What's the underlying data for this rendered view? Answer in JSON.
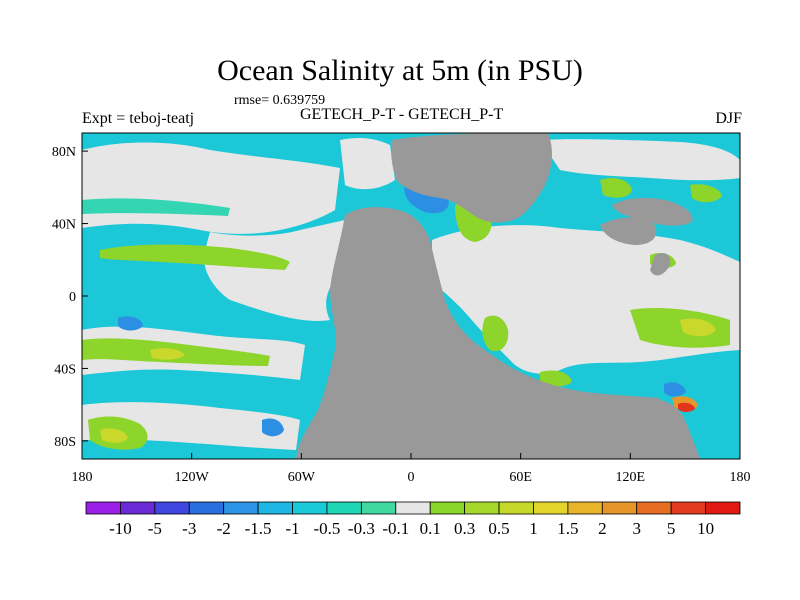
{
  "title": "Ocean Salinity at 5m (in PSU)",
  "rmse_text": "rmse= 0.639759",
  "left_label": "Expt = teboj-teatj",
  "center_label": "GETECH_P-T - GETECH_P-T",
  "season_label": "DJF",
  "x_ticks": [
    "180",
    "120W",
    "60W",
    "0",
    "60E",
    "120E",
    "180"
  ],
  "y_ticks": [
    "80N",
    "40N",
    "0",
    "40S",
    "80S"
  ],
  "colorbar": {
    "labels": [
      "-10",
      "-5",
      "-3",
      "-2",
      "-1.5",
      "-1",
      "-0.5",
      "-0.3",
      "-0.1",
      "0.1",
      "0.3",
      "0.5",
      "1",
      "1.5",
      "2",
      "3",
      "5",
      "10"
    ],
    "colors": [
      "#9b1fe6",
      "#6a2ad6",
      "#3f47e0",
      "#2a6fe0",
      "#2c94e6",
      "#1fb6e4",
      "#19cbd8",
      "#1fd6b4",
      "#3fd9a0",
      "#e6e6e6",
      "#8bd62a",
      "#a6d82b",
      "#c6d92a",
      "#e3d52a",
      "#e8b42a",
      "#e6952a",
      "#e56e22",
      "#e23a1e",
      "#e01a12"
    ]
  },
  "colors": {
    "land": "#999999",
    "neutral": "#e6e6e6",
    "cyan": "#1cc8d8",
    "teal": "#33d5b3",
    "green": "#8dd42b",
    "blue": "#2c8fe4",
    "yellow": "#c9d82a",
    "orange": "#e8952a",
    "red": "#e0341c"
  }
}
